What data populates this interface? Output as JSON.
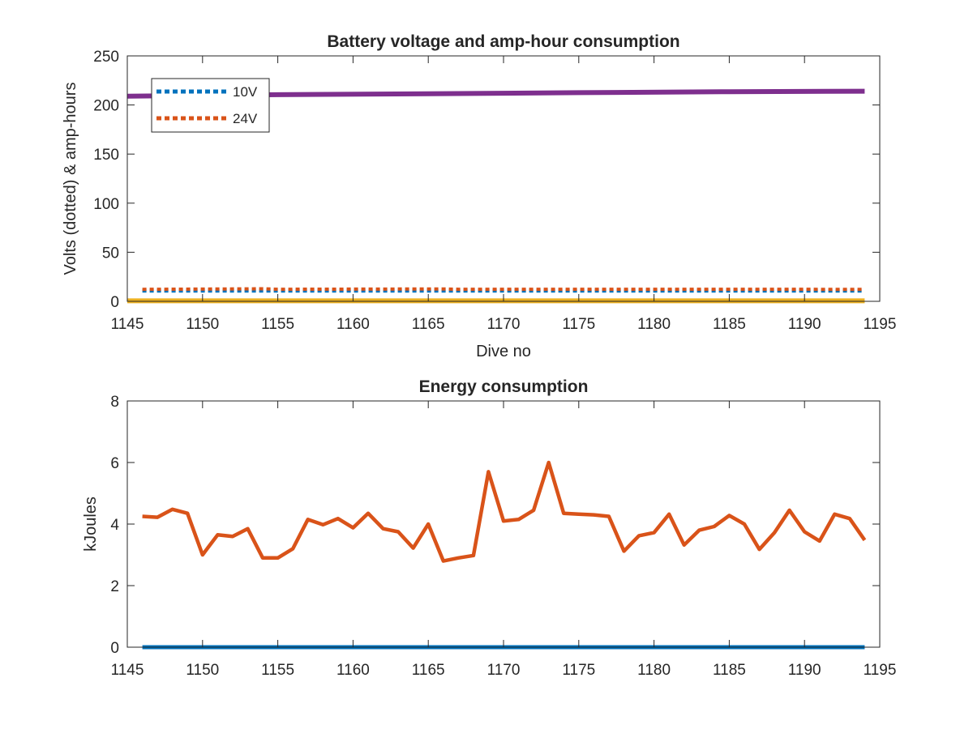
{
  "chart_data": [
    {
      "type": "line",
      "title": "Battery voltage and amp-hour consumption",
      "xlabel": "Dive no",
      "ylabel": "Volts (dotted) & amp-hours",
      "xlim": [
        1145,
        1195
      ],
      "ylim": [
        0,
        250
      ],
      "xticks": [
        1145,
        1150,
        1155,
        1160,
        1165,
        1170,
        1175,
        1180,
        1185,
        1190,
        1195
      ],
      "yticks": [
        0,
        50,
        100,
        150,
        200,
        250
      ],
      "grid": false,
      "legend": {
        "placement": "top-left",
        "entries": [
          "10V",
          "24V"
        ]
      },
      "series": [
        {
          "name": "10V",
          "style": "dotted",
          "color": "#0072BD",
          "x": [
            1146,
            1194
          ],
          "y": [
            10.5,
            10.5
          ]
        },
        {
          "name": "24V",
          "style": "dotted",
          "color": "#D95319",
          "x": [
            1146,
            1154,
            1155,
            1166,
            1167,
            1194
          ],
          "y": [
            12.2,
            12.8,
            12.3,
            12.6,
            12.3,
            12.2
          ]
        },
        {
          "style": "solid",
          "color": "#EDB120",
          "x": [
            1145,
            1194
          ],
          "y": [
            0.5,
            0.5
          ]
        },
        {
          "style": "solid",
          "color": "#7E2F8E",
          "x": [
            1145,
            1155,
            1165,
            1175,
            1185,
            1194
          ],
          "y": [
            209,
            210.5,
            211.5,
            212.5,
            213.5,
            214
          ]
        }
      ]
    },
    {
      "type": "line",
      "title": "Energy consumption",
      "xlabel": "",
      "ylabel": "kJoules",
      "xlim": [
        1145,
        1195
      ],
      "ylim": [
        0,
        8
      ],
      "xticks": [
        1145,
        1150,
        1155,
        1160,
        1165,
        1170,
        1175,
        1180,
        1185,
        1190,
        1195
      ],
      "yticks": [
        0,
        2,
        4,
        6,
        8
      ],
      "grid": false,
      "series": [
        {
          "style": "solid",
          "color": "#0072BD",
          "x": [
            1146,
            1194
          ],
          "y": [
            0,
            0
          ]
        },
        {
          "style": "solid",
          "color": "#D95319",
          "x": [
            1146,
            1147,
            1148,
            1149,
            1150,
            1151,
            1152,
            1153,
            1154,
            1155,
            1156,
            1157,
            1158,
            1159,
            1160,
            1161,
            1162,
            1163,
            1164,
            1165,
            1166,
            1167,
            1168,
            1169,
            1170,
            1171,
            1172,
            1173,
            1174,
            1175,
            1176,
            1177,
            1178,
            1179,
            1180,
            1181,
            1182,
            1183,
            1184,
            1185,
            1186,
            1187,
            1188,
            1189,
            1190,
            1191,
            1192,
            1193,
            1194
          ],
          "y": [
            4.25,
            4.22,
            4.48,
            4.35,
            3.0,
            3.65,
            3.6,
            3.85,
            2.9,
            2.9,
            3.2,
            4.15,
            3.98,
            4.18,
            3.88,
            4.35,
            3.85,
            3.75,
            3.22,
            4.0,
            2.8,
            2.9,
            2.98,
            5.7,
            4.1,
            4.15,
            4.45,
            6.0,
            4.35,
            4.32,
            4.3,
            4.25,
            3.12,
            3.62,
            3.72,
            4.32,
            3.32,
            3.8,
            3.92,
            4.28,
            4.0,
            3.18,
            3.72,
            4.45,
            3.75,
            3.45,
            4.32,
            4.18,
            3.48
          ]
        }
      ]
    }
  ]
}
